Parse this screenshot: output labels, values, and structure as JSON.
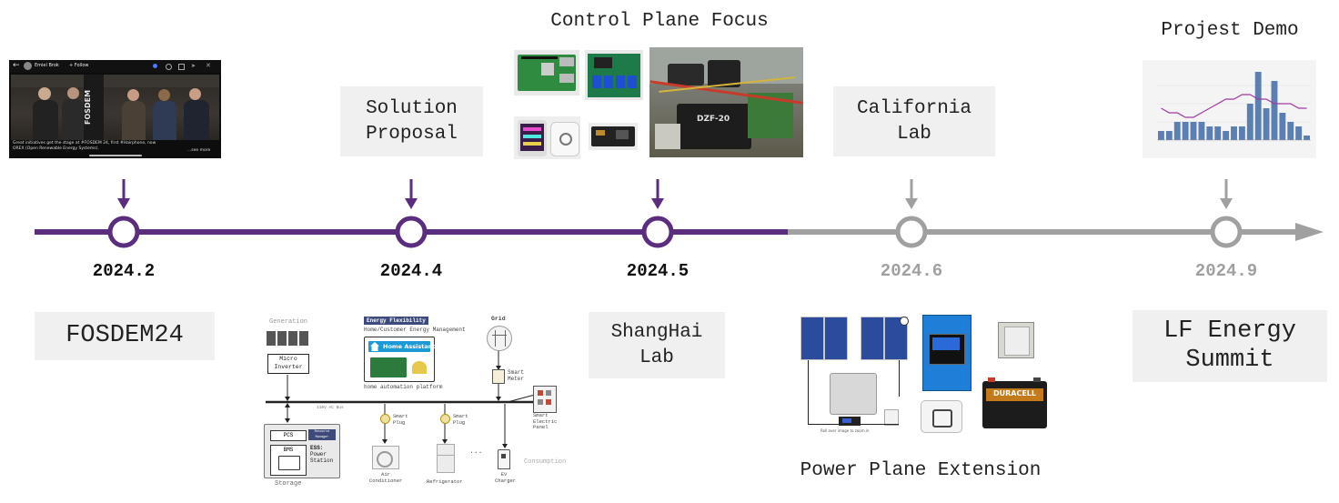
{
  "colors": {
    "done": "#5a2d7e",
    "future": "#a0a0a0"
  },
  "milestones": [
    {
      "date": "2024.2",
      "status": "done"
    },
    {
      "date": "2024.4",
      "status": "done"
    },
    {
      "date": "2024.5",
      "status": "done"
    },
    {
      "date": "2024.6",
      "status": "future"
    },
    {
      "date": "2024.9",
      "status": "future"
    }
  ],
  "labels": {
    "control_plane": "Control Plane Focus",
    "project_demo": "Projest Demo",
    "power_plane": "Power Plane Extension"
  },
  "boxes": {
    "solution_line1": "Solution",
    "solution_line2": "Proposal",
    "california_line1": "California",
    "california_line2": "Lab",
    "fosdem": "FOSDEM24",
    "shanghai_line1": "ShangHai",
    "shanghai_line2": "Lab",
    "lf_line1": "LF Energy",
    "lf_line2": "Summit"
  },
  "video_thumb": {
    "author": "Emiel Brok",
    "follow": "+ Follow",
    "banner": "FOSDEM",
    "caption": "Great initiatives get the stage at #FOSDEM 24, first #Hairphone, now OREX (Open Renewable Energy Systems).",
    "see_more": "...see more"
  },
  "architecture": {
    "generation": "Generation",
    "micro_inverter_1": "Micro",
    "micro_inverter_2": "Inverter",
    "energy_flexibility": "Energy Flexibility",
    "home_mgmt": "Home/Customer Energy Management",
    "home_assistant": "Home Assistant",
    "home_platform": "home automation platform",
    "grid": "Grid",
    "smart_meter_1": "Smart",
    "smart_meter_2": "Meter",
    "bus": "110V AC Bus",
    "pcs": "PCS",
    "resource_manager": "Resource Manager",
    "bms": "BMS",
    "ess_1": "ESS:",
    "ess_2": "Power",
    "ess_3": "Station",
    "storage": "Storage",
    "smart_plug_1": "Smart",
    "smart_plug_2": "Plug",
    "smart_panel_1": "Smart",
    "smart_panel_2": "Electric",
    "smart_panel_3": "Panel",
    "air_conditioner_1": "Air",
    "air_conditioner_2": "Conditioner",
    "refrigerator": "Refrigerator",
    "ellipsis": "...",
    "ev_charger_1": "EV",
    "ev_charger_2": "Charger",
    "consumption": "Consumption"
  },
  "power_photo": {
    "battery_brand": "DURACELL",
    "hint": "Roll over image to zoom in"
  },
  "control_photo": {
    "battery_mark": "DZF-20"
  },
  "demo_chart": {
    "type": "bar",
    "values": [
      2,
      2,
      4,
      4,
      4,
      4,
      3,
      3,
      2,
      3,
      3,
      8,
      15,
      7,
      13,
      6,
      4,
      3,
      1
    ],
    "line": [
      7,
      6,
      6,
      5,
      5,
      6,
      7,
      8,
      9,
      9,
      10,
      10,
      9,
      9,
      8,
      8,
      8,
      7,
      7
    ]
  }
}
